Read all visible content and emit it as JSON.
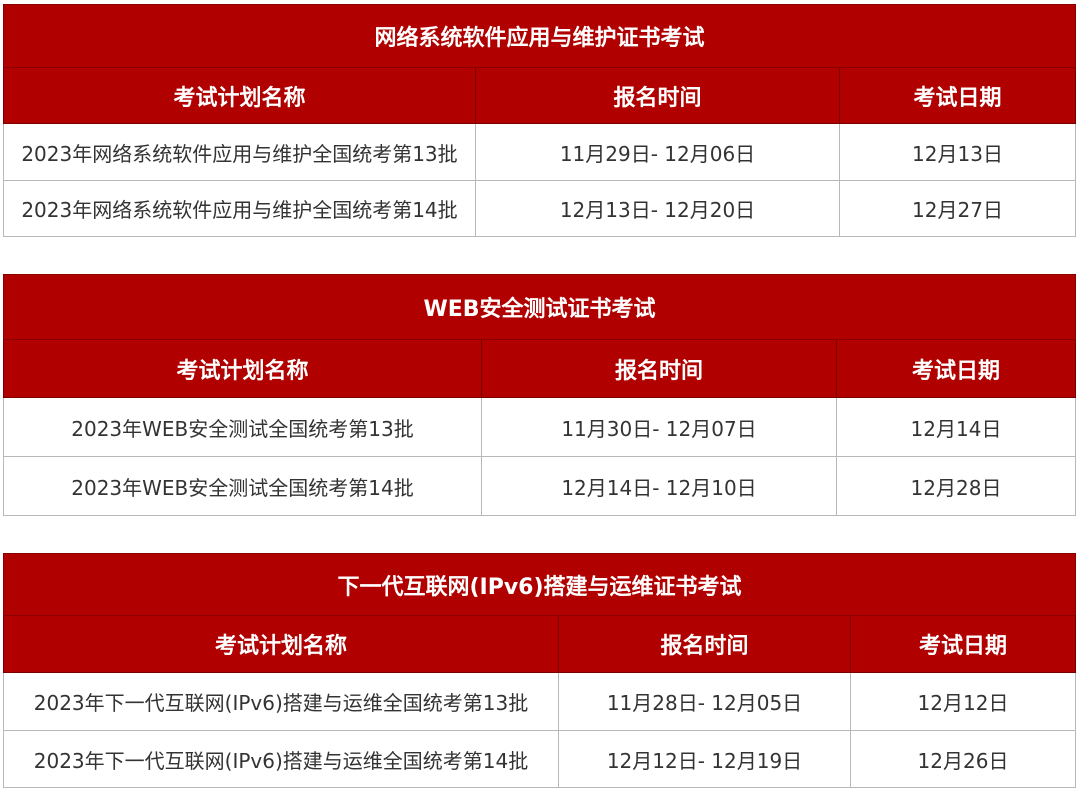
{
  "colors": {
    "header_bg": "#b00000",
    "header_text": "#ffffff",
    "cell_text": "#333333"
  },
  "tables": [
    {
      "title": "网络系统软件应用与维护证书考试",
      "columns": [
        "考试计划名称",
        "报名时间",
        "考试日期"
      ],
      "rows": [
        [
          "2023年网络系统软件应用与维护全国统考第13批",
          "11月29日- 12月06日",
          "12月13日"
        ],
        [
          "2023年网络系统软件应用与维护全国统考第14批",
          "12月13日- 12月20日",
          "12月27日"
        ]
      ]
    },
    {
      "title": "WEB安全测试证书考试",
      "columns": [
        "考试计划名称",
        "报名时间",
        "考试日期"
      ],
      "rows": [
        [
          "2023年WEB安全测试全国统考第13批",
          "11月30日- 12月07日",
          "12月14日"
        ],
        [
          "2023年WEB安全测试全国统考第14批",
          "12月14日- 12月10日",
          "12月28日"
        ]
      ]
    },
    {
      "title": "下一代互联网(IPv6)搭建与运维证书考试",
      "columns": [
        "考试计划名称",
        "报名时间",
        "考试日期"
      ],
      "rows": [
        [
          "2023年下一代互联网(IPv6)搭建与运维全国统考第13批",
          "11月28日- 12月05日",
          "12月12日"
        ],
        [
          "2023年下一代互联网(IPv6)搭建与运维全国统考第14批",
          "12月12日- 12月19日",
          "12月26日"
        ]
      ]
    }
  ]
}
